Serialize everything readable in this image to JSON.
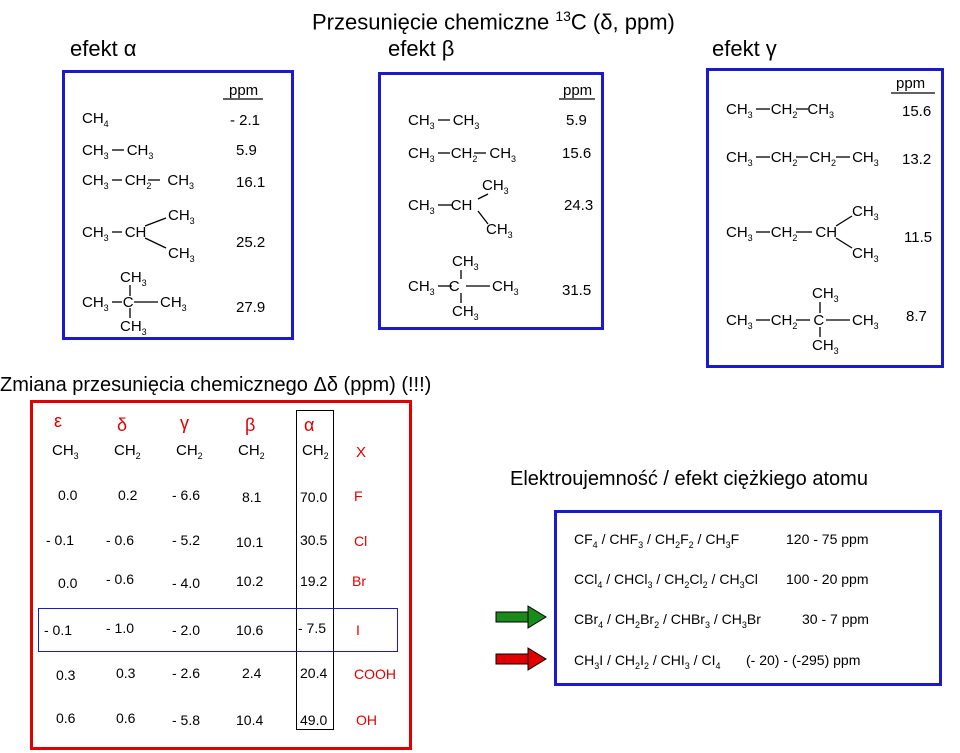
{
  "title": {
    "main": "Przesunięcie chemiczne ",
    "sup": "13",
    "rest": "C (δ, ppm)"
  },
  "headers": {
    "alpha": "efekt α",
    "beta": "efekt β",
    "gamma": "efekt γ"
  },
  "ppm_label": "ppm",
  "alpha_box": {
    "rows": [
      {
        "formula": [
          "CH",
          "4"
        ],
        "value": "- 2.1"
      },
      {
        "formula": [
          "CH",
          "3",
          "CH",
          "3"
        ],
        "value": "5.9"
      },
      {
        "formula": [
          "CH",
          "3",
          "CH",
          "2",
          "CH",
          "3"
        ],
        "value": "16.1"
      },
      {
        "formula": [
          "CH",
          "3",
          "CH",
          "",
          "CH",
          "3",
          "CH",
          "3"
        ],
        "value": "25.2"
      },
      {
        "formula": [
          "CH",
          "3",
          "C",
          "",
          "CH",
          "3",
          "CH",
          "3",
          "CH",
          "3"
        ],
        "value": "27.9"
      }
    ]
  },
  "beta_box": {
    "rows": [
      {
        "formula": [
          "CH",
          "3",
          "CH",
          "3"
        ],
        "value": "5.9"
      },
      {
        "formula": [
          "CH",
          "3",
          "CH",
          "2",
          "CH",
          "3"
        ],
        "value": "15.6"
      },
      {
        "formula": [
          "CH",
          "3",
          "CH",
          "",
          "CH",
          "3",
          "CH",
          "3"
        ],
        "value": "24.3"
      },
      {
        "formula": [
          "CH",
          "3",
          "C",
          "",
          "CH",
          "3",
          "CH",
          "3",
          "CH",
          "3"
        ],
        "value": "31.5"
      }
    ]
  },
  "gamma_box": {
    "rows": [
      {
        "formula": [
          "CH",
          "3",
          "CH",
          "2",
          "CH",
          "3"
        ],
        "value": "15.6"
      },
      {
        "formula": [
          "CH",
          "3",
          "CH",
          "2",
          "CH",
          "2",
          "CH",
          "3"
        ],
        "value": "13.2"
      },
      {
        "formula": [
          "CH",
          "3",
          "CH",
          "2",
          "CH",
          "",
          "CH",
          "3",
          "CH",
          "3"
        ],
        "value": "11.5"
      },
      {
        "formula": [
          "CH",
          "3",
          "CH",
          "2",
          "C",
          "",
          "CH",
          "3",
          "CH",
          "3",
          "CH",
          "3"
        ],
        "value": "8.7"
      }
    ]
  },
  "change_title": "Zmiana przesunięcia chemicznego Δδ (ppm) (!!!)",
  "change_table": {
    "greek": [
      "ε",
      "δ",
      "γ",
      "β",
      "α"
    ],
    "chain": [
      "CH",
      "3",
      "CH",
      "2",
      "CH",
      "2",
      "CH",
      "2",
      "CH",
      "2",
      "X"
    ],
    "rows": [
      {
        "vals": [
          "0.0",
          "0.2",
          "- 6.6",
          "8.1",
          "70.0"
        ],
        "x": "F"
      },
      {
        "vals": [
          "- 0.1",
          "- 0.6",
          "- 5.2",
          "10.1",
          "30.5"
        ],
        "x": "Cl"
      },
      {
        "vals": [
          "0.0",
          "- 0.6",
          "- 4.0",
          "10.2",
          "19.2"
        ],
        "x": "Br"
      },
      {
        "vals": [
          "- 0.1",
          "- 1.0",
          "- 2.0",
          "10.6",
          "- 7.5"
        ],
        "x": "I"
      },
      {
        "vals": [
          "0.3",
          "0.3",
          "- 2.6",
          "2.4",
          "20.4"
        ],
        "x": "COOH"
      },
      {
        "vals": [
          "0.6",
          "0.6",
          "- 5.8",
          "10.4",
          "49.0"
        ],
        "x": "OH"
      }
    ]
  },
  "electro": {
    "title": "Elektroujemność / efekt ciężkiego atomu",
    "rows": [
      {
        "formula": [
          "CF",
          "4",
          " / ",
          "CHF",
          "3",
          " / ",
          "CH",
          "2",
          "F",
          "2",
          " / ",
          "CH",
          "3",
          "F"
        ],
        "range": "120 - 75 ppm"
      },
      {
        "formula": [
          "CCl",
          "4",
          " / ",
          "CHCl",
          "3",
          " / ",
          "CH",
          "2",
          "Cl",
          "2",
          " / ",
          "CH",
          "3",
          "Cl"
        ],
        "range": "100 - 20 ppm"
      },
      {
        "formula": [
          "CBr",
          "4",
          " / ",
          "CH",
          "2",
          "Br",
          "2",
          " / ",
          "CHBr",
          "3",
          " / ",
          "CH",
          "3",
          "Br"
        ],
        "range": "30 - 7 ppm"
      },
      {
        "formula": [
          "CH",
          "3",
          "I / ",
          "CH",
          "2",
          "I",
          "2",
          " / ",
          "CHI",
          "3",
          " / ",
          "CI",
          "4"
        ],
        "range": "(- 20) - (-295) ppm"
      }
    ],
    "arrows": [
      "green",
      "red"
    ]
  },
  "colors": {
    "blue": "#1a1acc",
    "red": "#e00000",
    "green": "#1a8a1a"
  }
}
